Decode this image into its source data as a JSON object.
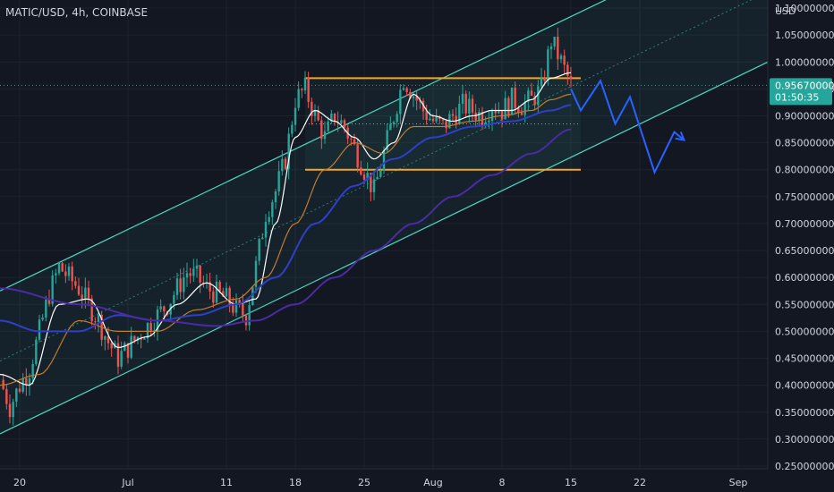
{
  "header": {
    "symbol_title": "MATIC/USD, 4h, COINBASE"
  },
  "colors": {
    "background": "#131722",
    "grid": "#1e222d",
    "up_candle": "#26a69a",
    "down_candle": "#ef5350",
    "channel": "#4dd8c0",
    "range_lines": "#f5a623",
    "projection": "#2962ff",
    "ma_fast": "#ffffff",
    "ma_mid": "#c37b2d",
    "ma_slow": "#2f3fc9",
    "ma_slowest": "#4b2aa5",
    "price_badge": "#26a69a"
  },
  "chart_data": {
    "type": "candlestick",
    "title": "MATIC/USD, 4h, COINBASE",
    "y_axis_unit": "USD",
    "ylim": [
      0.245,
      1.115
    ],
    "y_ticks": [
      0.25,
      0.3,
      0.35,
      0.4,
      0.45,
      0.5,
      0.55,
      0.6,
      0.65,
      0.7,
      0.75,
      0.8,
      0.85,
      0.9,
      0.95,
      1.0,
      1.05,
      1.1
    ],
    "y_tick_labels": [
      "0.25000000",
      "0.30000000",
      "0.35000000",
      "0.40000000",
      "0.45000000",
      "0.50000000",
      "0.55000000",
      "0.60000000",
      "0.65000000",
      "0.70000000",
      "0.75000000",
      "0.80000000",
      "0.85000000",
      "0.90000000",
      "0.95000000",
      "1.00000000",
      "1.05000000",
      "1.10000000"
    ],
    "x_unit": "days since June 18",
    "xlim": [
      0,
      78
    ],
    "x_ticks": [
      {
        "label": "20",
        "day": 2
      },
      {
        "label": "Jul",
        "day": 13
      },
      {
        "label": "11",
        "day": 23
      },
      {
        "label": "18",
        "day": 30
      },
      {
        "label": "25",
        "day": 37
      },
      {
        "label": "Aug",
        "day": 44
      },
      {
        "label": "8",
        "day": 51
      },
      {
        "label": "15",
        "day": 58
      },
      {
        "label": "22",
        "day": 65
      },
      {
        "label": "Sep",
        "day": 75
      }
    ],
    "grid": true,
    "current_price": {
      "value": 0.9567,
      "label": "0.95670000",
      "countdown": "01:50:35"
    },
    "price_path": [
      [
        0,
        0.41
      ],
      [
        1,
        0.36
      ],
      [
        2,
        0.4
      ],
      [
        3,
        0.43
      ],
      [
        4,
        0.5
      ],
      [
        5,
        0.57
      ],
      [
        6,
        0.62
      ],
      [
        7,
        0.6
      ],
      [
        8,
        0.58
      ],
      [
        9,
        0.55
      ],
      [
        10,
        0.52
      ],
      [
        11,
        0.48
      ],
      [
        12,
        0.45
      ],
      [
        13,
        0.47
      ],
      [
        14,
        0.49
      ],
      [
        15,
        0.51
      ],
      [
        16,
        0.53
      ],
      [
        17,
        0.55
      ],
      [
        18,
        0.58
      ],
      [
        19,
        0.61
      ],
      [
        20,
        0.6
      ],
      [
        21,
        0.58
      ],
      [
        22,
        0.57
      ],
      [
        23,
        0.56
      ],
      [
        24,
        0.54
      ],
      [
        25,
        0.53
      ],
      [
        26,
        0.62
      ],
      [
        27,
        0.72
      ],
      [
        28,
        0.76
      ],
      [
        29,
        0.82
      ],
      [
        30,
        0.93
      ],
      [
        31,
        0.95
      ],
      [
        32,
        0.9
      ],
      [
        33,
        0.86
      ],
      [
        34,
        0.9
      ],
      [
        35,
        0.88
      ],
      [
        36,
        0.84
      ],
      [
        37,
        0.8
      ],
      [
        38,
        0.76
      ],
      [
        39,
        0.83
      ],
      [
        40,
        0.9
      ],
      [
        41,
        0.97
      ],
      [
        42,
        0.94
      ],
      [
        43,
        0.91
      ],
      [
        44,
        0.89
      ],
      [
        45,
        0.88
      ],
      [
        46,
        0.9
      ],
      [
        47,
        0.92
      ],
      [
        48,
        0.91
      ],
      [
        49,
        0.9
      ],
      [
        50,
        0.92
      ],
      [
        51,
        0.91
      ],
      [
        52,
        0.93
      ],
      [
        53,
        0.92
      ],
      [
        54,
        0.93
      ],
      [
        55,
        0.95
      ],
      [
        56,
        1.04
      ],
      [
        57,
        1.0
      ],
      [
        58,
        0.9567
      ]
    ],
    "series": [
      {
        "name": "",
        "color": "#ffffff",
        "points": [
          [
            0,
            0.42
          ],
          [
            3,
            0.4
          ],
          [
            6,
            0.55
          ],
          [
            9,
            0.56
          ],
          [
            12,
            0.47
          ],
          [
            15,
            0.49
          ],
          [
            18,
            0.55
          ],
          [
            21,
            0.59
          ],
          [
            24,
            0.55
          ],
          [
            26,
            0.56
          ],
          [
            28,
            0.7
          ],
          [
            30,
            0.86
          ],
          [
            32,
            0.91
          ],
          [
            34,
            0.89
          ],
          [
            36,
            0.86
          ],
          [
            38,
            0.82
          ],
          [
            40,
            0.85
          ],
          [
            42,
            0.94
          ],
          [
            44,
            0.9
          ],
          [
            46,
            0.89
          ],
          [
            48,
            0.9
          ],
          [
            50,
            0.91
          ],
          [
            52,
            0.91
          ],
          [
            54,
            0.93
          ],
          [
            56,
            0.97
          ],
          [
            58,
            0.98
          ]
        ]
      },
      {
        "name": "",
        "color": "#c37b2d",
        "points": [
          [
            0,
            0.4
          ],
          [
            4,
            0.42
          ],
          [
            8,
            0.52
          ],
          [
            12,
            0.5
          ],
          [
            16,
            0.5
          ],
          [
            20,
            0.54
          ],
          [
            24,
            0.56
          ],
          [
            27,
            0.6
          ],
          [
            30,
            0.7
          ],
          [
            33,
            0.8
          ],
          [
            36,
            0.85
          ],
          [
            39,
            0.83
          ],
          [
            42,
            0.88
          ],
          [
            45,
            0.88
          ],
          [
            48,
            0.89
          ],
          [
            51,
            0.9
          ],
          [
            54,
            0.91
          ],
          [
            56,
            0.93
          ],
          [
            58,
            0.94
          ]
        ]
      },
      {
        "name": "",
        "color": "#2f3fc9",
        "points": [
          [
            0,
            0.52
          ],
          [
            4,
            0.5
          ],
          [
            8,
            0.5
          ],
          [
            12,
            0.53
          ],
          [
            16,
            0.52
          ],
          [
            20,
            0.53
          ],
          [
            24,
            0.55
          ],
          [
            28,
            0.6
          ],
          [
            32,
            0.7
          ],
          [
            36,
            0.77
          ],
          [
            40,
            0.82
          ],
          [
            44,
            0.86
          ],
          [
            48,
            0.88
          ],
          [
            52,
            0.89
          ],
          [
            56,
            0.91
          ],
          [
            58,
            0.92
          ]
        ]
      },
      {
        "name": "",
        "color": "#4b2aa5",
        "points": [
          [
            0,
            0.58
          ],
          [
            8,
            0.55
          ],
          [
            16,
            0.52
          ],
          [
            22,
            0.51
          ],
          [
            26,
            0.52
          ],
          [
            30,
            0.55
          ],
          [
            34,
            0.6
          ],
          [
            38,
            0.65
          ],
          [
            42,
            0.7
          ],
          [
            46,
            0.75
          ],
          [
            50,
            0.79
          ],
          [
            54,
            0.83
          ],
          [
            58,
            0.875
          ]
        ]
      }
    ],
    "channel": {
      "upper": [
        [
          0,
          0.575
        ],
        [
          78,
          1.26
        ]
      ],
      "mid": [
        [
          0,
          0.445
        ],
        [
          78,
          1.13
        ]
      ],
      "lower": [
        [
          0,
          0.31
        ],
        [
          78,
          1.0
        ]
      ]
    },
    "horizontal_levels": [
      {
        "value": 0.97,
        "from_day": 31,
        "to_day": 59
      },
      {
        "value": 0.8,
        "from_day": 31,
        "to_day": 59
      }
    ],
    "dotted_levels": [
      0.885
    ],
    "projection_path": [
      [
        58,
        0.95
      ],
      [
        59,
        0.91
      ],
      [
        61,
        0.965
      ],
      [
        62.5,
        0.885
      ],
      [
        64,
        0.935
      ],
      [
        66.5,
        0.795
      ],
      [
        68.5,
        0.87
      ],
      [
        69.5,
        0.855
      ]
    ]
  }
}
